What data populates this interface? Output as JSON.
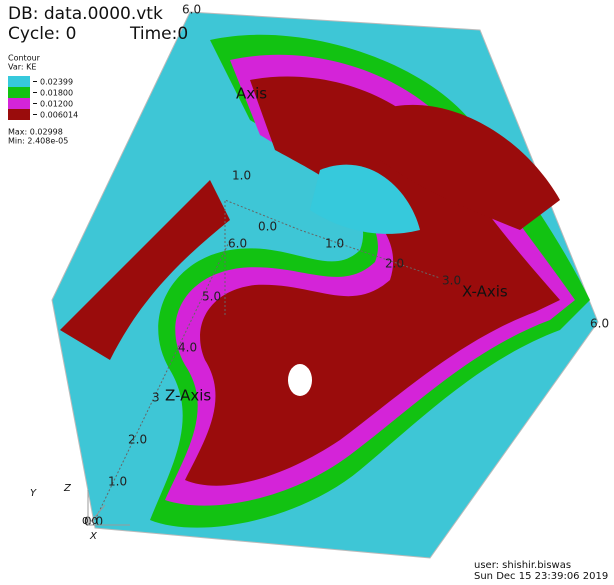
{
  "header": {
    "database": "DB: data.0000.vtk",
    "cycle": "Cycle: 0",
    "time": "Time:0"
  },
  "legend": {
    "title": "Contour",
    "variable": "Var: KE",
    "entries": [
      {
        "label": "0.02399",
        "color": "#36c9dc"
      },
      {
        "label": "0.01800",
        "color": "#12c212"
      },
      {
        "label": "0.01200",
        "color": "#d424d8"
      },
      {
        "label": "0.006014",
        "color": "#9a0c0c"
      }
    ],
    "max": "Max: 0.02998",
    "min": "Min: 2.408e-05"
  },
  "axes": {
    "x_title": "X-Axis",
    "y_title": "Axis",
    "z_title": "Z-Axis",
    "x_ticks": [
      "0.0",
      "1.0",
      "2.0",
      "3.0",
      "6.0"
    ],
    "y_ticks": [
      "1.0",
      "6.0"
    ],
    "z_ticks": [
      "0.0",
      "1.0",
      "2.0",
      "3",
      "4.0",
      "5.0",
      "6.0"
    ]
  },
  "triad": {
    "x": "X",
    "y": "Y",
    "z": "Z",
    "origin": "0.0"
  },
  "footer": {
    "user": "user: shishir.biswas",
    "date": "Sun Dec 15 23:39:06 2019"
  }
}
